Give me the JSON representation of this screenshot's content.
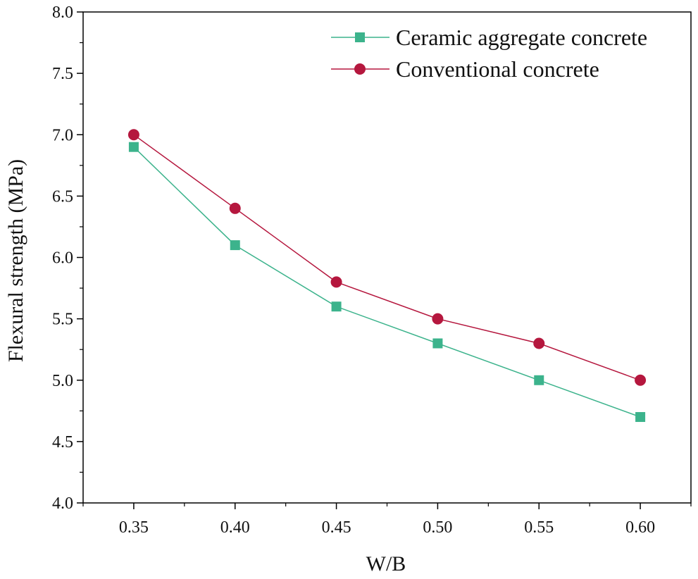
{
  "chart_data": {
    "type": "line",
    "title": "",
    "xlabel": "W/B",
    "ylabel": "Flexural strength (MPa)",
    "x": [
      0.35,
      0.4,
      0.45,
      0.5,
      0.55,
      0.6
    ],
    "x_tick_labels": [
      "0.35",
      "0.40",
      "0.45",
      "0.50",
      "0.55",
      "0.60"
    ],
    "xlim": [
      0.325,
      0.625
    ],
    "ylim": [
      4.0,
      8.0
    ],
    "y_ticks": [
      4.0,
      4.5,
      5.0,
      5.5,
      6.0,
      6.5,
      7.0,
      7.5,
      8.0
    ],
    "y_tick_labels": [
      "4.0",
      "4.5",
      "5.0",
      "5.5",
      "6.0",
      "6.5",
      "7.0",
      "7.5",
      "8.0"
    ],
    "grid": false,
    "legend_position": "top-right",
    "series": [
      {
        "name": "Ceramic aggregate concrete",
        "values": [
          6.9,
          6.1,
          5.6,
          5.3,
          5.0,
          4.7
        ],
        "color": "#3cb38c",
        "marker": "square"
      },
      {
        "name": "Conventional concrete",
        "values": [
          7.0,
          6.4,
          5.8,
          5.5,
          5.3,
          5.0
        ],
        "color": "#b5173e",
        "marker": "circle"
      }
    ]
  }
}
